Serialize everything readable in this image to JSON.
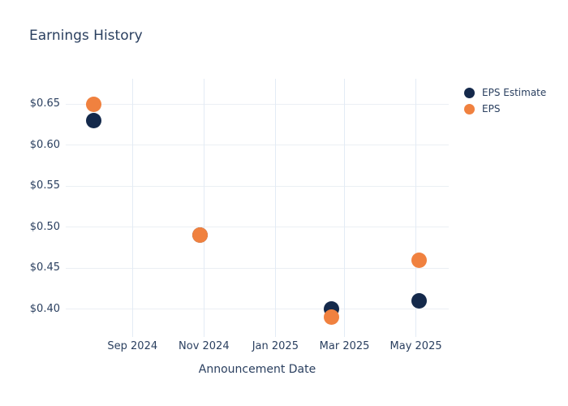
{
  "chart_data": {
    "type": "scatter",
    "title": "Earnings History",
    "xlabel": "Announcement Date",
    "ylabel": "",
    "grid": true,
    "legend_position": "top-right",
    "xlim": [
      "2024-07-06",
      "2025-05-29"
    ],
    "ylim": [
      0.366,
      0.681
    ],
    "x_ticks": [
      {
        "value": "2024-09-01",
        "label": "Sep 2024"
      },
      {
        "value": "2024-11-01",
        "label": "Nov 2024"
      },
      {
        "value": "2025-01-01",
        "label": "Jan 2025"
      },
      {
        "value": "2025-03-01",
        "label": "Mar 2025"
      },
      {
        "value": "2025-05-01",
        "label": "May 2025"
      }
    ],
    "y_ticks": [
      {
        "value": 0.4,
        "label": "$0.40"
      },
      {
        "value": 0.45,
        "label": "$0.45"
      },
      {
        "value": 0.5,
        "label": "$0.50"
      },
      {
        "value": 0.55,
        "label": "$0.55"
      },
      {
        "value": 0.6,
        "label": "$0.60"
      },
      {
        "value": 0.65,
        "label": "$0.65"
      }
    ],
    "series": [
      {
        "name": "EPS Estimate",
        "color": "#14294b",
        "points": [
          {
            "x": "2024-07-30",
            "y": 0.63
          },
          {
            "x": "2024-10-29",
            "y": 0.49
          },
          {
            "x": "2025-02-18",
            "y": 0.4
          },
          {
            "x": "2025-05-04",
            "y": 0.41
          }
        ]
      },
      {
        "name": "EPS",
        "color": "#f0813f",
        "points": [
          {
            "x": "2024-07-30",
            "y": 0.65
          },
          {
            "x": "2024-10-29",
            "y": 0.49
          },
          {
            "x": "2025-02-18",
            "y": 0.39
          },
          {
            "x": "2025-05-04",
            "y": 0.46
          }
        ]
      }
    ]
  }
}
